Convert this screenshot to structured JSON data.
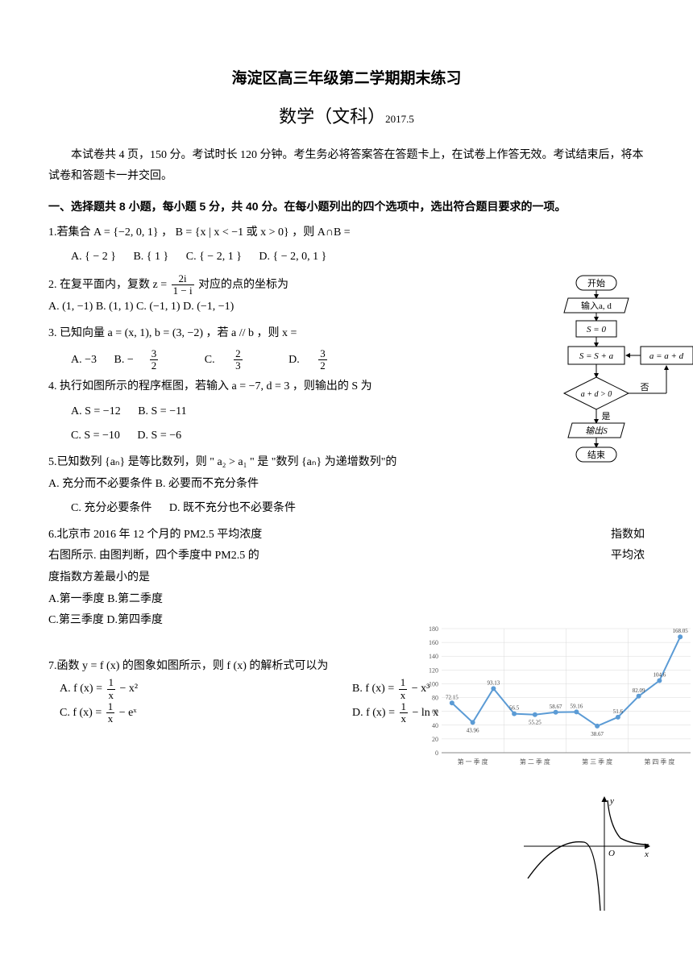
{
  "title": "海淀区高三年级第二学期期末练习",
  "subject": "数学（文科）",
  "date": "2017.5",
  "intro": "本试卷共 4 页，150 分。考试时长 120 分钟。考生务必将答案答在答题卡上，在试卷上作答无效。考试结束后，将本试卷和答题卡一并交回。",
  "section1": "一、选择题共 8 小题，每小题 5 分，共 40 分。在每小题列出的四个选项中，选出符合题目要求的一项。",
  "q1": {
    "stem": "1.若集合 A = {−2, 0, 1} ，  B = {x | x < −1 或 x > 0} ，则 A∩B =",
    "a": "A.   { − 2 }",
    "b": "B.   { 1 }",
    "c": "C. { − 2, 1 }",
    "d": "D.   { − 2, 0, 1 }"
  },
  "q2": {
    "stem_prefix": "2.  在复平面内，复数 z =",
    "frac_num": "2i",
    "frac_den": "1 − i",
    "stem_suffix": " 对应的点的坐标为",
    "a": "A.   (1, −1)",
    "b": "B.   (1, 1)",
    "c": "C. (−1, 1)",
    "d": "D. (−1, −1)"
  },
  "q3": {
    "stem": "3.  已知向量 a = (x, 1),  b = (3, −2) ，若 a // b ，则 x =",
    "a": "A.   −3",
    "b_pre": "B. −",
    "b_num": "3",
    "b_den": "2",
    "c_pre": "C. ",
    "c_num": "2",
    "c_den": "3",
    "d_pre": "D.   ",
    "d_num": "3",
    "d_den": "2"
  },
  "q4": {
    "stem": "4.  执行如图所示的程序框图，若输入 a = −7, d = 3 ，则输出的 S 为",
    "a": "A.   S = −12",
    "b": "B. S = −11",
    "c": "C.  S = −10",
    "d": "D.   S = −6"
  },
  "q5": {
    "stem": "5.已知数列 {aₙ} 是等比数列，则 \" a₂ > a₁ \" 是 \"数列 {aₙ} 为递增数列\"的",
    "a": "A.  充分而不必要条件",
    "b": "B.  必要而不充分条件",
    "c": "C.  充分必要条件",
    "d": "D.  既不充分也不必要条件"
  },
  "q6": {
    "line1_left": "6.北京市 2016 年 12 个月的 PM2.5 平均浓度",
    "line1_right": "指数如",
    "line2_left": "右图所示. 由图判断，四个季度中 PM2.5 的",
    "line2_right": "平均浓",
    "line3": "度指数方差最小的是",
    "a": "A.第一季度",
    "b": "B.第二季度",
    "c": "C.第三季度",
    "d": "D.第四季度"
  },
  "q7": {
    "stem": "7.函数 y = f (x) 的图象如图所示，则 f (x) 的解析式可以为",
    "a_pre": "A. f (x) = ",
    "a_num": "1",
    "a_den": "x",
    "a_post": " − x²",
    "b_pre": "B. f (x) = ",
    "b_num": "1",
    "b_den": "x",
    "b_post": " − x³",
    "c_pre": "C. f (x) = ",
    "c_num": "1",
    "c_den": "x",
    "c_post": " − eˣ",
    "d_pre": "D.   f (x) = ",
    "d_num": "1",
    "d_den": "x",
    "d_post": " − ln x"
  },
  "flowchart": {
    "start": "开始",
    "input": "输入a, d",
    "init": "S = 0",
    "step": "S = S + a",
    "upd": "a = a + d",
    "cond": "a + d > 0",
    "no": "否",
    "yes": "是",
    "out": "输出S",
    "end": "结束",
    "colors": {
      "line": "#000000",
      "fill": "#ffffff",
      "text": "#000000"
    }
  },
  "chart": {
    "type": "line",
    "x_labels": [
      "第 一 季 度",
      "第 二 季 度",
      "第 三 季 度",
      "第 四 季 度"
    ],
    "values": [
      72.15,
      43.96,
      93.13,
      56.5,
      55.25,
      58.67,
      59.16,
      38.67,
      51.6,
      82.09,
      104.6,
      168.05
    ],
    "value_labels": [
      "72.15",
      "43.96",
      "93.13",
      "56.5",
      "55.25",
      "58.67",
      "59.16",
      "38.67",
      "51.6",
      "82.09",
      "104.6",
      "168.05"
    ],
    "ylim": [
      0,
      180
    ],
    "ytick_step": 20,
    "line_color": "#5b9bd5",
    "marker_color": "#5b9bd5",
    "grid_color": "#d9d9d9",
    "background_color": "#ffffff",
    "label_fontsize": 7,
    "axis_fontsize": 8
  },
  "funcgraph": {
    "axis_color": "#000000",
    "curve_color": "#000000",
    "xlabel": "x",
    "ylabel": "y",
    "origin": "O"
  }
}
